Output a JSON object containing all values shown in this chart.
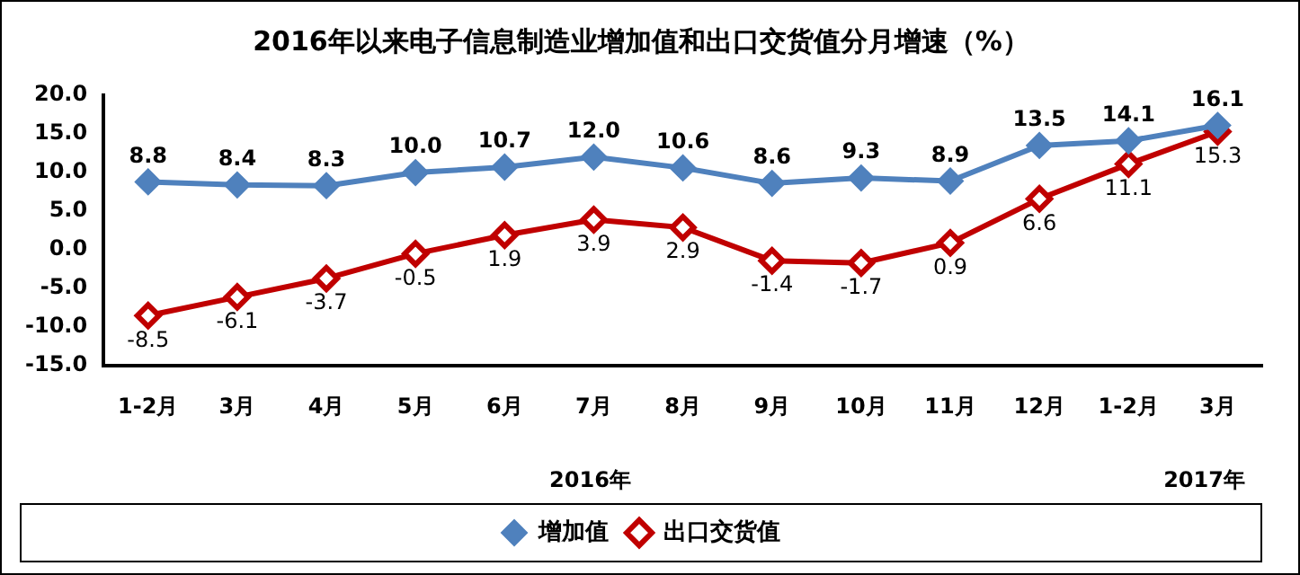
{
  "chart_data": {
    "type": "line",
    "title": "2016年以来电子信息制造业增加值和出口交货值分月增速（%）",
    "categories": [
      "1-2月",
      "3月",
      "4月",
      "5月",
      "6月",
      "7月",
      "8月",
      "9月",
      "10月",
      "11月",
      "12月",
      "1-2月",
      "3月"
    ],
    "series": [
      {
        "name": "增加值",
        "color": "#4f81bd",
        "values": [
          8.8,
          8.4,
          8.3,
          10.0,
          10.7,
          12.0,
          10.6,
          8.6,
          9.3,
          8.9,
          13.5,
          14.1,
          16.1
        ],
        "value_labels": [
          "8.8",
          "8.4",
          "8.3",
          "10.0",
          "10.7",
          "12.0",
          "10.6",
          "8.6",
          "9.3",
          "8.9",
          "13.5",
          "14.1",
          "16.1"
        ]
      },
      {
        "name": "出口交货值",
        "color": "#c00000",
        "values": [
          -8.5,
          -6.1,
          -3.7,
          -0.5,
          1.9,
          3.9,
          2.9,
          -1.4,
          -1.7,
          0.9,
          6.6,
          11.1,
          15.3
        ],
        "value_labels": [
          "-8.5",
          "-6.1",
          "-3.7",
          "-0.5",
          "1.9",
          "3.9",
          "2.9",
          "-1.4",
          "-1.7",
          "0.9",
          "6.6",
          "11.1",
          "15.3"
        ]
      }
    ],
    "ylim": [
      -15,
      20
    ],
    "yticks": [
      {
        "value": -15,
        "label": "-15.0"
      },
      {
        "value": -10,
        "label": "-10.0"
      },
      {
        "value": -5,
        "label": "-5.0"
      },
      {
        "value": 0,
        "label": "0.0"
      },
      {
        "value": 5,
        "label": "5.0"
      },
      {
        "value": 10,
        "label": "10.0"
      },
      {
        "value": 15,
        "label": "15.0"
      },
      {
        "value": 20,
        "label": "20.0"
      }
    ],
    "annotations": [
      "2016年",
      "2017年"
    ],
    "grid": false,
    "legend": "bottom",
    "marker": "diamond",
    "line_style": "solid"
  }
}
